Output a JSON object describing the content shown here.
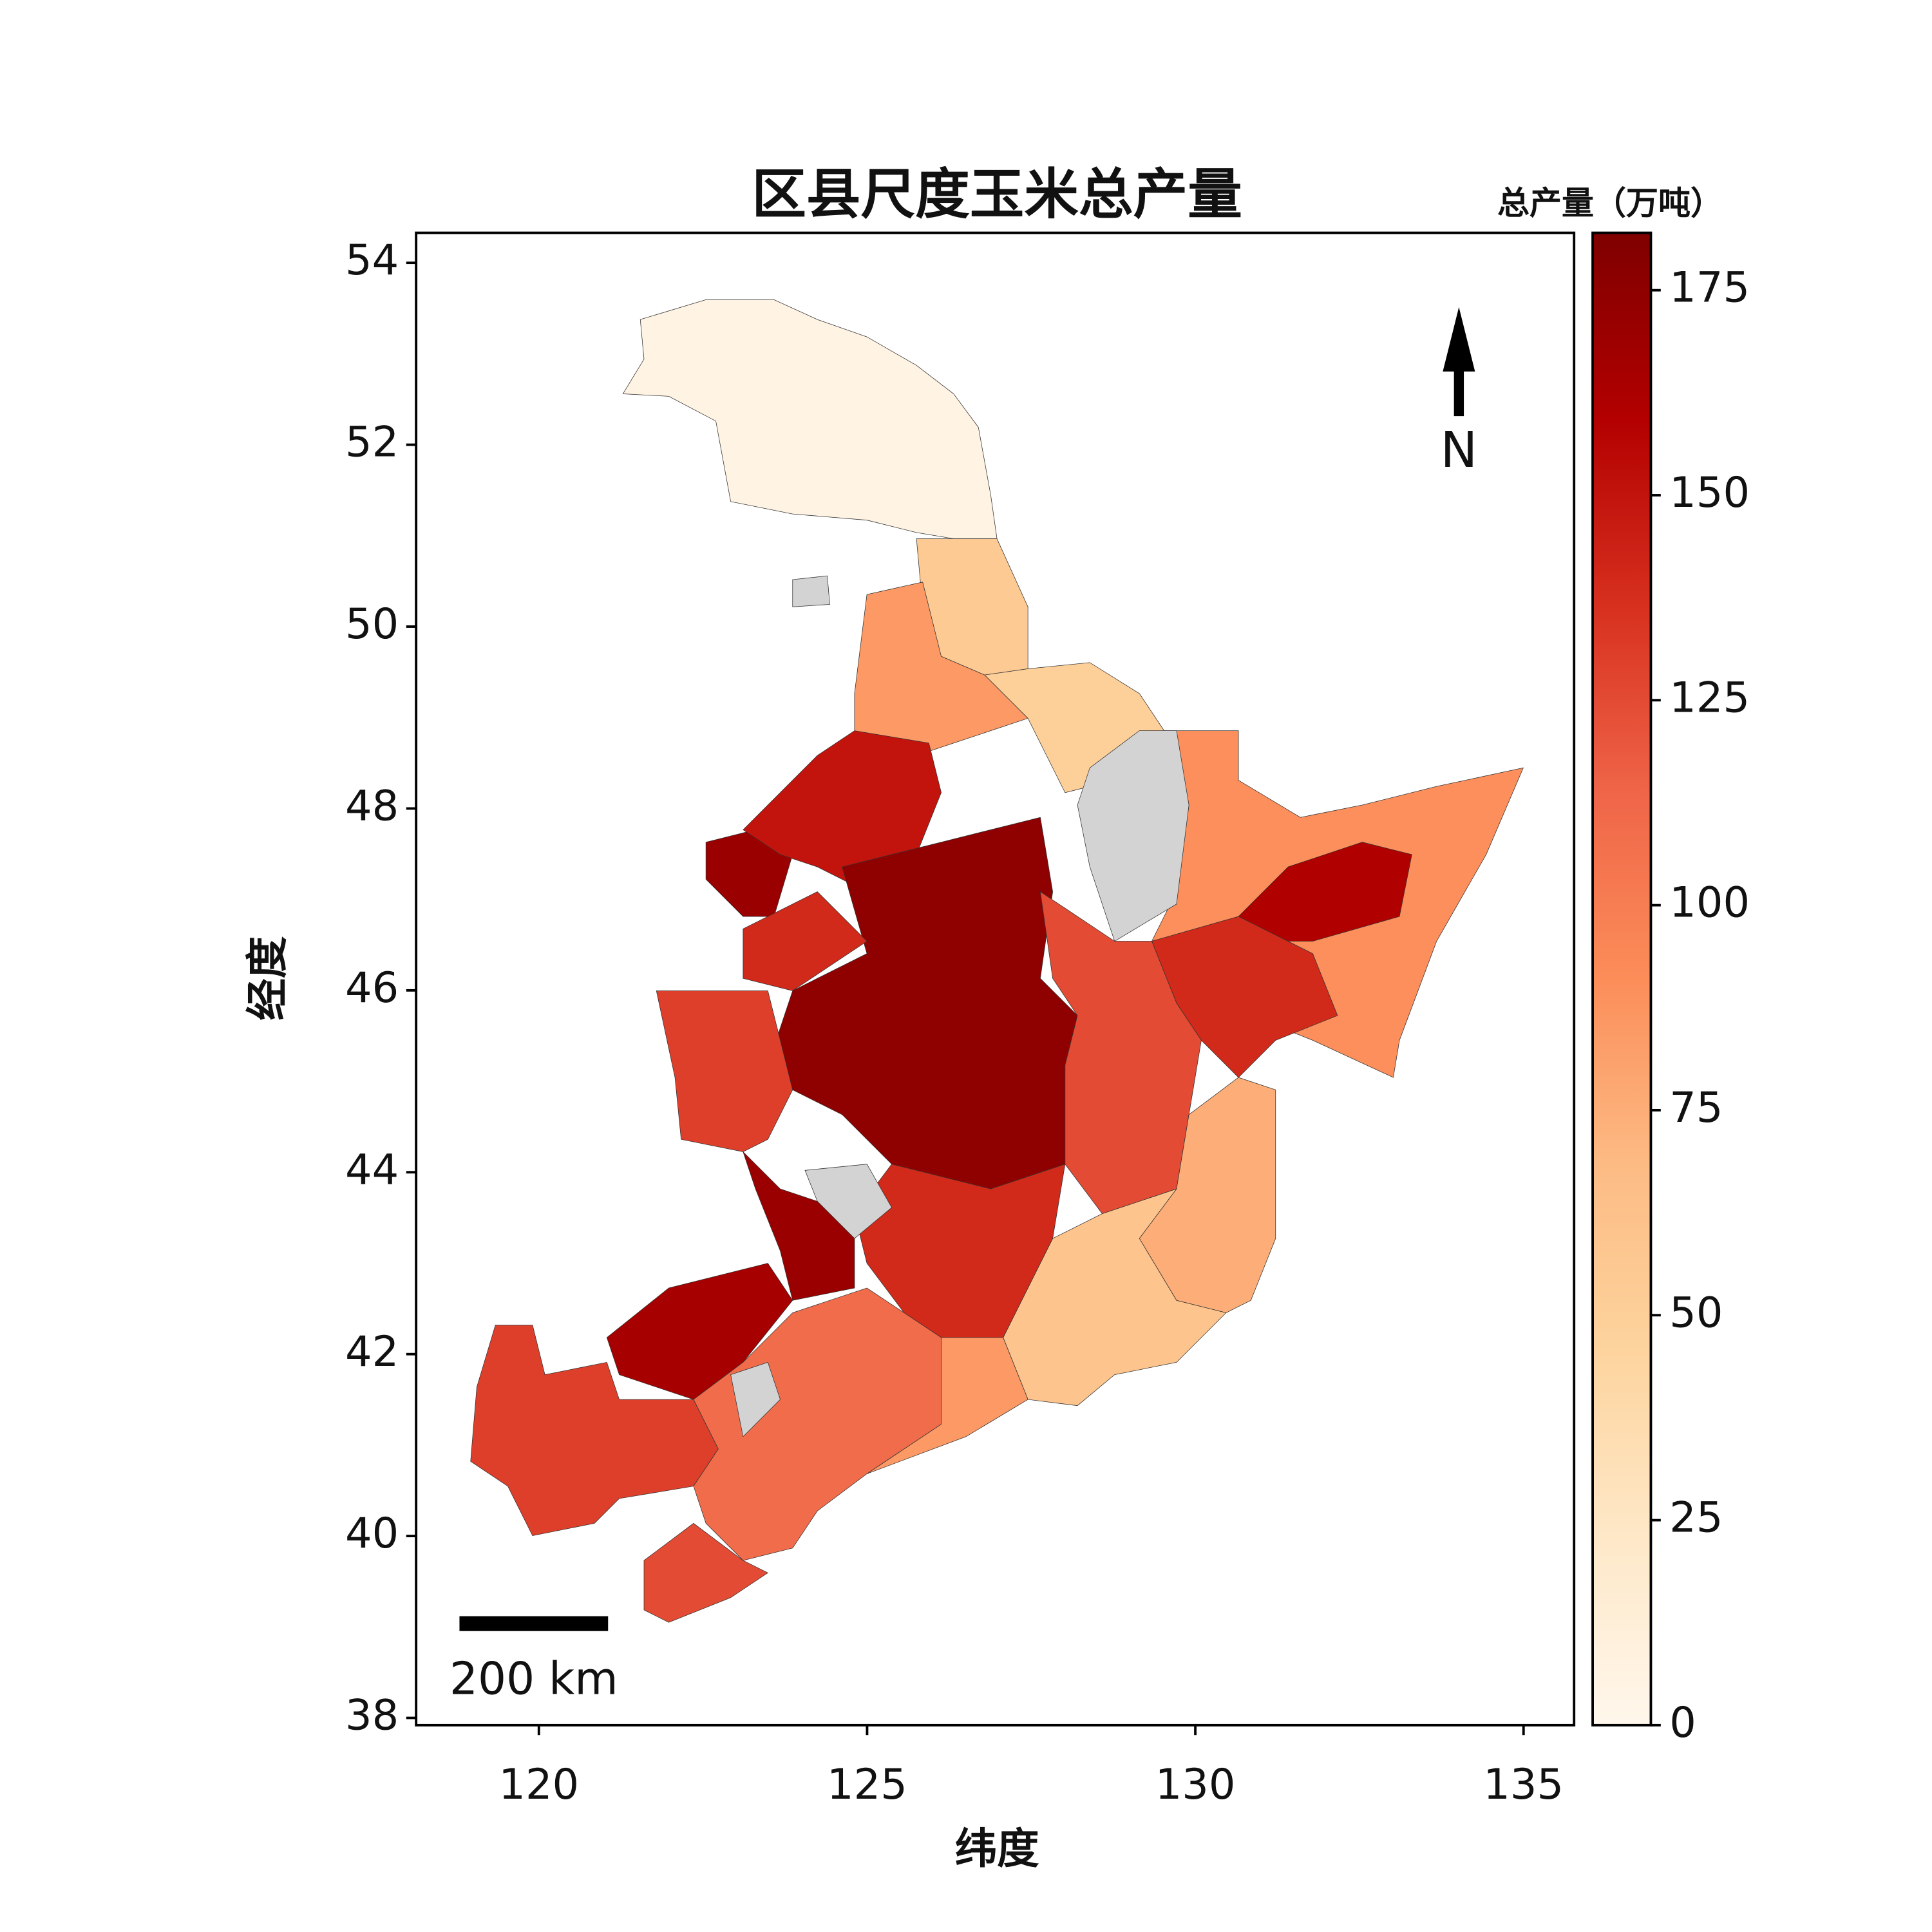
{
  "chart_data": {
    "type": "map",
    "title": "区县尺度玉米总产量",
    "x_label": "纬度",
    "y_label": "经度",
    "xlim": [
      118.13,
      135.77
    ],
    "ylim": [
      37.92,
      54.33
    ],
    "xticks": [
      120,
      125,
      130,
      135
    ],
    "yticks": [
      38,
      40,
      42,
      44,
      46,
      48,
      50,
      52,
      54
    ],
    "colorbar_label": "总产量（万吨）",
    "clim": [
      0,
      182
    ],
    "colorbar_ticks": [
      0,
      25,
      50,
      75,
      100,
      125,
      150,
      175
    ],
    "colormap": [
      "#fff7ec",
      "#fee8c8",
      "#fdd49e",
      "#fdbb84",
      "#fc8d59",
      "#ef6548",
      "#d7301f",
      "#b30000",
      "#7f0000"
    ],
    "missing_color": "#d3d3d3",
    "north_label": "N",
    "scale_label": "200 km",
    "values": [
      6,
      55,
      85,
      50,
      90,
      160,
      140,
      170,
      150,
      175,
      130,
      140,
      125,
      75,
      60,
      140,
      170,
      165,
      130,
      110,
      125,
      85
    ]
  }
}
